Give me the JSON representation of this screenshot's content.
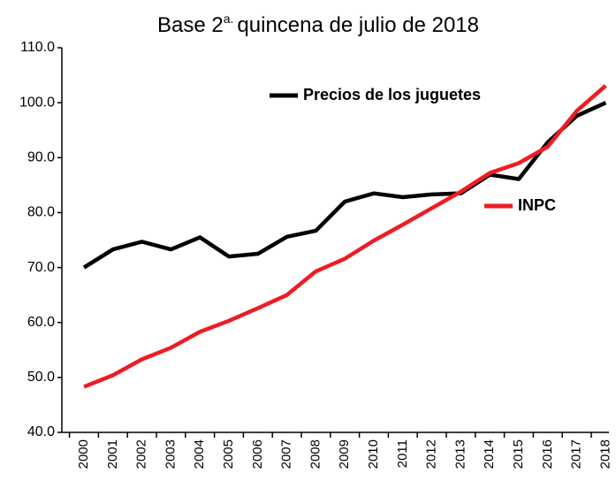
{
  "chart_data": {
    "type": "line",
    "subtitle": [
      "Base 2",
      "a.",
      "quincena de julio de 2018"
    ],
    "categories": [
      "2000",
      "2001",
      "2002",
      "2003",
      "2004",
      "2005",
      "2006",
      "2007",
      "2008",
      "2009",
      "2010",
      "2011",
      "2012",
      "2013",
      "2014",
      "2015",
      "2016",
      "2017",
      "2018"
    ],
    "series": [
      {
        "name": "Precios de los juguetes",
        "color": "#000000",
        "values": [
          70.0,
          73.3,
          74.7,
          73.3,
          75.5,
          72.0,
          72.5,
          75.6,
          76.7,
          82.0,
          83.5,
          82.8,
          83.3,
          83.5,
          86.9,
          86.1,
          92.8,
          97.6,
          100.0
        ]
      },
      {
        "name": "INPC",
        "color": "#ee1c24",
        "values": [
          48.3,
          50.4,
          53.3,
          55.4,
          58.3,
          60.3,
          62.6,
          65.0,
          69.3,
          71.6,
          74.9,
          77.8,
          80.8,
          83.8,
          87.2,
          89.0,
          92.0,
          98.5,
          103.1
        ]
      }
    ],
    "ylim": [
      40,
      110
    ],
    "yticks": [
      {
        "value": 40,
        "label": "40.0"
      },
      {
        "value": 50,
        "label": "50.0"
      },
      {
        "value": 60,
        "label": "60.0"
      },
      {
        "value": 70,
        "label": "70.0"
      },
      {
        "value": 80,
        "label": "80.0"
      },
      {
        "value": 90,
        "label": "90.0"
      },
      {
        "value": 100,
        "label": "100.0"
      },
      {
        "value": 110,
        "label": "110.0"
      }
    ],
    "grid": false
  }
}
